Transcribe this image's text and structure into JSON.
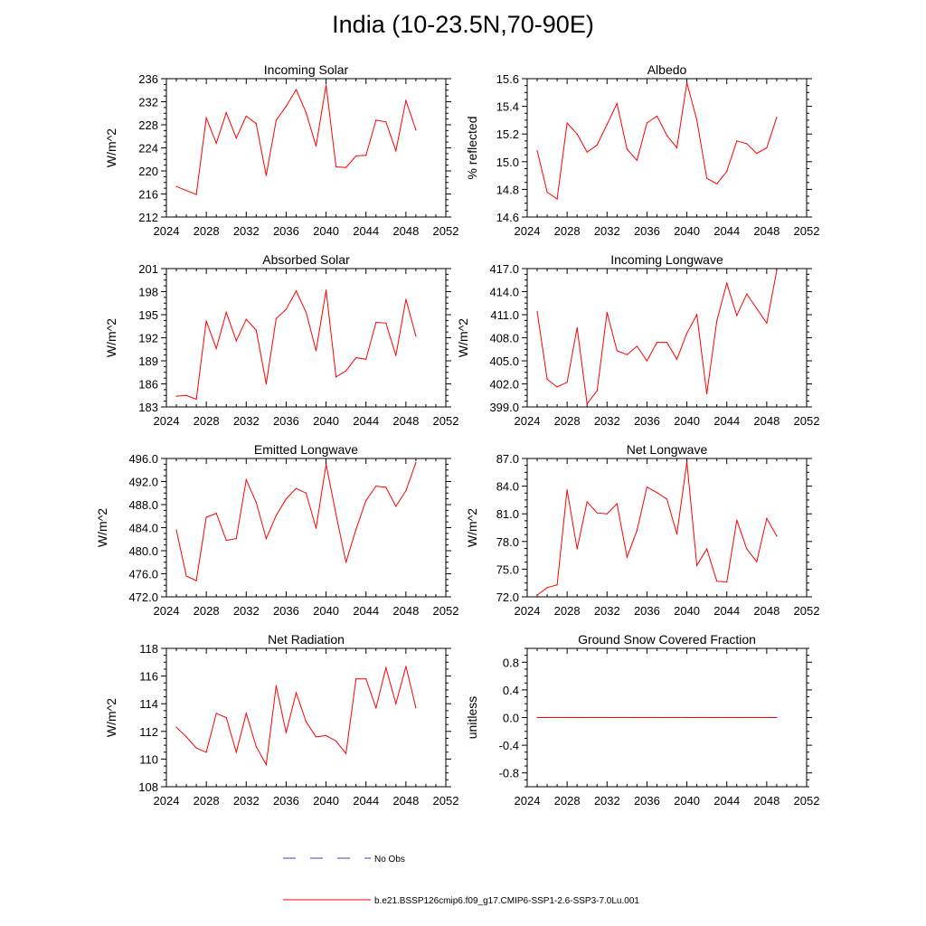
{
  "title": "India (10-23.5N,70-90E)",
  "legend": {
    "obs_label": "No Obs",
    "model_label": "b.e21.BSSP126cmip6.f09_g17.CMIP6-SSP1-2.6-SSP3-7.0Lu.001",
    "obs_color": "#4040cc",
    "model_color": "#ff0000"
  },
  "chart_data": [
    {
      "type": "line",
      "title": "Incoming Solar",
      "ylabel": "W/m^2",
      "xlim": [
        2024,
        2052
      ],
      "ylim": [
        212,
        236
      ],
      "xticks": [
        "2024",
        "2028",
        "2032",
        "2036",
        "2040",
        "2044",
        "2048",
        "2052"
      ],
      "yticks": [
        "212",
        "216",
        "220",
        "224",
        "228",
        "232",
        "236"
      ],
      "x": [
        2025,
        2026,
        2027,
        2028,
        2029,
        2030,
        2031,
        2032,
        2033,
        2034,
        2035,
        2036,
        2037,
        2038,
        2039,
        2040,
        2041,
        2042,
        2043,
        2044,
        2045,
        2046,
        2047,
        2048,
        2049
      ],
      "values": [
        217.3,
        216.6,
        215.9,
        229.2,
        224.8,
        230.1,
        225.7,
        229.5,
        228.2,
        219.2,
        228.8,
        231.2,
        234.1,
        230.1,
        224.3,
        234.9,
        220.7,
        220.6,
        222.6,
        222.7,
        228.8,
        228.5,
        223.5,
        232.2,
        227.1
      ]
    },
    {
      "type": "line",
      "title": "Albedo",
      "ylabel": "% reflected",
      "xlim": [
        2024,
        2052
      ],
      "ylim": [
        14.6,
        15.6
      ],
      "xticks": [
        "2024",
        "2028",
        "2032",
        "2036",
        "2040",
        "2044",
        "2048",
        "2052"
      ],
      "yticks": [
        "14.6",
        "14.8",
        "15.0",
        "15.2",
        "15.4",
        "15.6"
      ],
      "x": [
        2025,
        2026,
        2027,
        2028,
        2029,
        2030,
        2031,
        2032,
        2033,
        2034,
        2035,
        2036,
        2037,
        2038,
        2039,
        2040,
        2041,
        2042,
        2043,
        2044,
        2045,
        2046,
        2047,
        2048,
        2049
      ],
      "values": [
        15.08,
        14.78,
        14.73,
        15.28,
        15.2,
        15.07,
        15.12,
        15.27,
        15.42,
        15.09,
        15.01,
        15.28,
        15.33,
        15.19,
        15.1,
        15.57,
        15.3,
        14.88,
        14.84,
        14.93,
        15.15,
        15.13,
        15.06,
        15.1,
        15.32
      ]
    },
    {
      "type": "line",
      "title": "Absorbed Solar",
      "ylabel": "W/m^2",
      "xlim": [
        2024,
        2052
      ],
      "ylim": [
        183,
        201
      ],
      "xticks": [
        "2024",
        "2028",
        "2032",
        "2036",
        "2040",
        "2044",
        "2048",
        "2052"
      ],
      "yticks": [
        "183",
        "186",
        "189",
        "192",
        "195",
        "198",
        "201"
      ],
      "x": [
        2025,
        2026,
        2027,
        2028,
        2029,
        2030,
        2031,
        2032,
        2033,
        2034,
        2035,
        2036,
        2037,
        2038,
        2039,
        2040,
        2041,
        2042,
        2043,
        2044,
        2045,
        2046,
        2047,
        2048,
        2049
      ],
      "values": [
        184.4,
        184.5,
        184.0,
        194.2,
        190.6,
        195.3,
        191.6,
        194.4,
        193.0,
        186.0,
        194.5,
        195.7,
        198.1,
        195.3,
        190.3,
        198.2,
        186.9,
        187.7,
        189.4,
        189.2,
        194.0,
        193.9,
        189.7,
        197.0,
        192.2
      ]
    },
    {
      "type": "line",
      "title": "Incoming Longwave",
      "ylabel": "W/m^2",
      "xlim": [
        2024,
        2052
      ],
      "ylim": [
        399.0,
        417.0
      ],
      "xticks": [
        "2024",
        "2028",
        "2032",
        "2036",
        "2040",
        "2044",
        "2048",
        "2052"
      ],
      "yticks": [
        "399.0",
        "402.0",
        "405.0",
        "408.0",
        "411.0",
        "414.0",
        "417.0"
      ],
      "x": [
        2025,
        2026,
        2027,
        2028,
        2029,
        2030,
        2031,
        2032,
        2033,
        2034,
        2035,
        2036,
        2037,
        2038,
        2039,
        2040,
        2041,
        2042,
        2043,
        2044,
        2045,
        2046,
        2047,
        2048,
        2049
      ],
      "values": [
        411.4,
        402.6,
        401.6,
        402.2,
        409.3,
        399.4,
        401.1,
        411.3,
        406.3,
        405.8,
        406.9,
        405.0,
        407.4,
        407.4,
        405.2,
        408.6,
        411.0,
        400.7,
        410.2,
        415.1,
        410.9,
        413.7,
        411.8,
        409.9,
        416.7
      ]
    },
    {
      "type": "line",
      "title": "Emitted Longwave",
      "ylabel": "W/m^2",
      "xlim": [
        2024,
        2052
      ],
      "ylim": [
        472.0,
        496.0
      ],
      "xticks": [
        "2024",
        "2028",
        "2032",
        "2036",
        "2040",
        "2044",
        "2048",
        "2052"
      ],
      "yticks": [
        "472.0",
        "476.0",
        "480.0",
        "484.0",
        "488.0",
        "492.0",
        "496.0"
      ],
      "x": [
        2025,
        2026,
        2027,
        2028,
        2029,
        2030,
        2031,
        2032,
        2033,
        2034,
        2035,
        2036,
        2037,
        2038,
        2039,
        2040,
        2041,
        2042,
        2043,
        2044,
        2045,
        2046,
        2047,
        2048,
        2049
      ],
      "values": [
        483.6,
        475.6,
        474.8,
        485.8,
        486.5,
        481.8,
        482.1,
        492.3,
        488.4,
        482.1,
        486.1,
        489.0,
        490.8,
        490.0,
        483.9,
        495.0,
        486.3,
        478.0,
        483.7,
        488.7,
        491.2,
        491.0,
        487.7,
        490.4,
        495.3
      ]
    },
    {
      "type": "line",
      "title": "Net Longwave",
      "ylabel": "W/m^2",
      "xlim": [
        2024,
        2052
      ],
      "ylim": [
        72.0,
        87.0
      ],
      "xticks": [
        "2024",
        "2028",
        "2032",
        "2036",
        "2040",
        "2044",
        "2048",
        "2052"
      ],
      "yticks": [
        "72.0",
        "75.0",
        "78.0",
        "81.0",
        "84.0",
        "87.0"
      ],
      "x": [
        2025,
        2026,
        2027,
        2028,
        2029,
        2030,
        2031,
        2032,
        2033,
        2034,
        2035,
        2036,
        2037,
        2038,
        2039,
        2040,
        2041,
        2042,
        2043,
        2044,
        2045,
        2046,
        2047,
        2048,
        2049
      ],
      "values": [
        72.2,
        73.0,
        73.3,
        83.6,
        77.2,
        82.3,
        81.1,
        81.0,
        82.1,
        76.3,
        79.2,
        83.9,
        83.3,
        82.6,
        78.8,
        86.6,
        75.4,
        77.2,
        73.7,
        73.6,
        80.3,
        77.2,
        75.8,
        80.5,
        78.6
      ]
    },
    {
      "type": "line",
      "title": "Net Radiation",
      "ylabel": "W/m^2",
      "xlim": [
        2024,
        2052
      ],
      "ylim": [
        108,
        118
      ],
      "xticks": [
        "2024",
        "2028",
        "2032",
        "2036",
        "2040",
        "2044",
        "2048",
        "2052"
      ],
      "yticks": [
        "108",
        "110",
        "112",
        "114",
        "116",
        "118"
      ],
      "x": [
        2025,
        2026,
        2027,
        2028,
        2029,
        2030,
        2031,
        2032,
        2033,
        2034,
        2035,
        2036,
        2037,
        2038,
        2039,
        2040,
        2041,
        2042,
        2043,
        2044,
        2045,
        2046,
        2047,
        2048,
        2049
      ],
      "values": [
        112.3,
        111.6,
        110.8,
        110.5,
        113.3,
        113.0,
        110.5,
        113.3,
        110.9,
        109.6,
        115.3,
        111.9,
        114.8,
        112.7,
        111.6,
        111.7,
        111.3,
        110.4,
        115.8,
        115.8,
        113.7,
        116.6,
        114.0,
        116.7,
        113.7
      ]
    },
    {
      "type": "line",
      "title": "Ground Snow Covered Fraction",
      "ylabel": "unitless",
      "xlim": [
        2024,
        2052
      ],
      "ylim": [
        -1.0,
        1.0
      ],
      "xticks": [
        "2024",
        "2028",
        "2032",
        "2036",
        "2040",
        "2044",
        "2048",
        "2052"
      ],
      "yticks": [
        "-0.8",
        "-0.4",
        "0.0",
        "0.4",
        "0.8"
      ],
      "ytick_values": [
        -0.8,
        -0.4,
        0.0,
        0.4,
        0.8
      ],
      "x": [
        2025,
        2026,
        2027,
        2028,
        2029,
        2030,
        2031,
        2032,
        2033,
        2034,
        2035,
        2036,
        2037,
        2038,
        2039,
        2040,
        2041,
        2042,
        2043,
        2044,
        2045,
        2046,
        2047,
        2048,
        2049
      ],
      "values": [
        0,
        0,
        0,
        0,
        0,
        0,
        0,
        0,
        0,
        0,
        0,
        0,
        0,
        0,
        0,
        0,
        0,
        0,
        0,
        0,
        0,
        0,
        0,
        0,
        0
      ]
    }
  ]
}
